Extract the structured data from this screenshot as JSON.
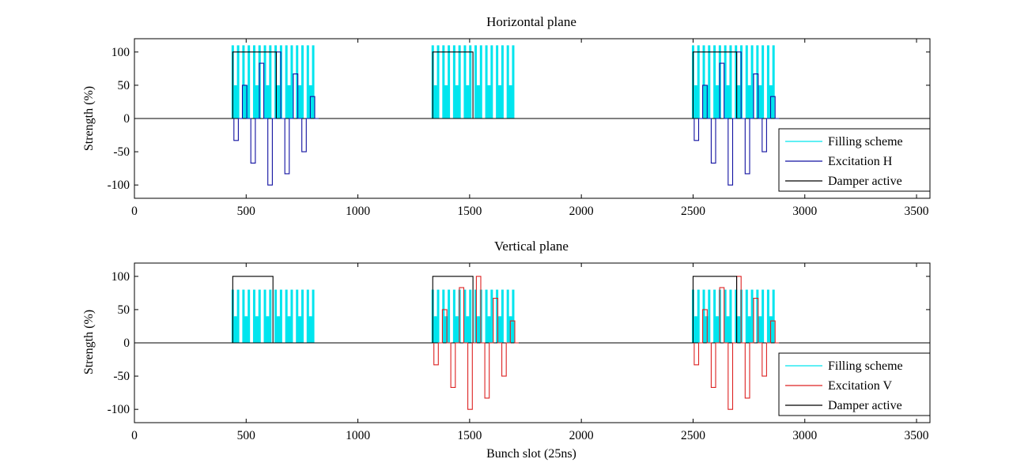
{
  "chart_data": [
    {
      "type": "line",
      "title": "Horizontal plane",
      "xlabel": "",
      "ylabel": "Strength (%)",
      "xlim": [
        0,
        3560
      ],
      "ylim": [
        -120,
        120
      ],
      "xticks": [
        0,
        500,
        1000,
        1500,
        2000,
        2500,
        3000,
        3500
      ],
      "yticks": [
        -100,
        -50,
        0,
        50,
        100
      ],
      "grid": false,
      "legend_position": "bottom-right",
      "filling_scheme": {
        "name": "Filling scheme",
        "color": "#00e5ee",
        "train_starts": [
          440,
          1335,
          2500
        ],
        "batches_per_train": 8,
        "batch_spacing": 48,
        "batch_length": 24,
        "pulses_per_batch": 4,
        "pulse_levels": [
          110,
          50
        ]
      },
      "excitation": {
        "name": "Excitation H",
        "color": "#1010a0",
        "trains": [
          440,
          2500
        ],
        "amplitudes": [
          -33,
          50,
          -67,
          83,
          -100,
          100,
          -83,
          67,
          -50,
          33
        ]
      },
      "damper_windows": {
        "name": "Damper active",
        "color": "#000000",
        "level": 100,
        "intervals": [
          [
            440,
            635
          ],
          [
            1335,
            1515
          ],
          [
            2500,
            2695
          ]
        ]
      }
    },
    {
      "type": "line",
      "title": "Vertical plane",
      "xlabel": "Bunch slot (25ns)",
      "ylabel": "Strength (%)",
      "xlim": [
        0,
        3560
      ],
      "ylim": [
        -120,
        120
      ],
      "xticks": [
        0,
        500,
        1000,
        1500,
        2000,
        2500,
        3000,
        3500
      ],
      "yticks": [
        -100,
        -50,
        0,
        50,
        100
      ],
      "grid": false,
      "legend_position": "bottom-right",
      "filling_scheme": {
        "name": "Filling scheme",
        "color": "#00e5ee",
        "train_starts": [
          440,
          1335,
          2500
        ],
        "batches_per_train": 8,
        "batch_spacing": 48,
        "batch_length": 24,
        "pulses_per_batch": 4,
        "pulse_levels": [
          80,
          40
        ]
      },
      "excitation": {
        "name": "Excitation V",
        "color": "#dd2222",
        "trains": [
          1335,
          2500
        ],
        "amplitudes": [
          -33,
          50,
          -67,
          83,
          -100,
          100,
          -83,
          67,
          -50,
          33
        ]
      },
      "damper_windows": {
        "name": "Damper active",
        "color": "#000000",
        "level": 100,
        "intervals": [
          [
            440,
            620
          ],
          [
            1335,
            1515
          ],
          [
            2500,
            2695
          ]
        ]
      }
    }
  ]
}
